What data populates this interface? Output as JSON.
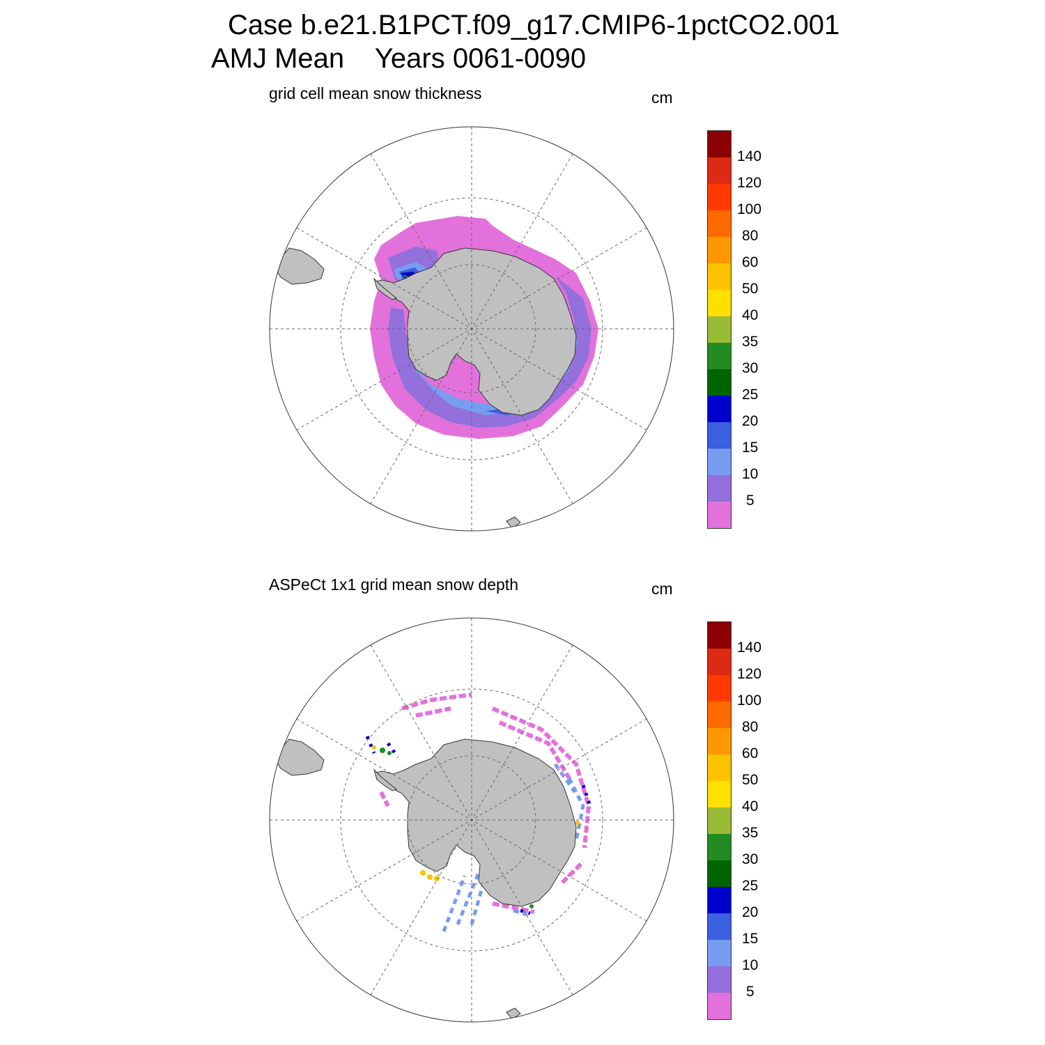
{
  "title_line1": "Case b.e21.B1PCT.f09_g17.CMIP6-1pctCO2.001",
  "title_line2": "AMJ Mean    Years 0061-0090",
  "panels": [
    {
      "subtitle": "grid cell mean snow thickness",
      "units": "cm"
    },
    {
      "subtitle": "ASPeCt 1x1 grid mean snow depth",
      "units": "cm"
    }
  ],
  "colorbar": {
    "labels": [
      "140",
      "120",
      "100",
      "80",
      "60",
      "50",
      "40",
      "35",
      "30",
      "25",
      "20",
      "15",
      "10",
      "5"
    ],
    "colors": [
      "#8b0000",
      "#dd2a12",
      "#ff3a00",
      "#ff6a00",
      "#ff9800",
      "#ffc200",
      "#ffe000",
      "#9abb36",
      "#228b22",
      "#006400",
      "#0000cc",
      "#3a5fe0",
      "#779df0",
      "#9370db",
      "#e371dc"
    ]
  },
  "colors": {
    "land": "#c0c0c0",
    "coast": "#333333",
    "grid": "#666666"
  }
}
